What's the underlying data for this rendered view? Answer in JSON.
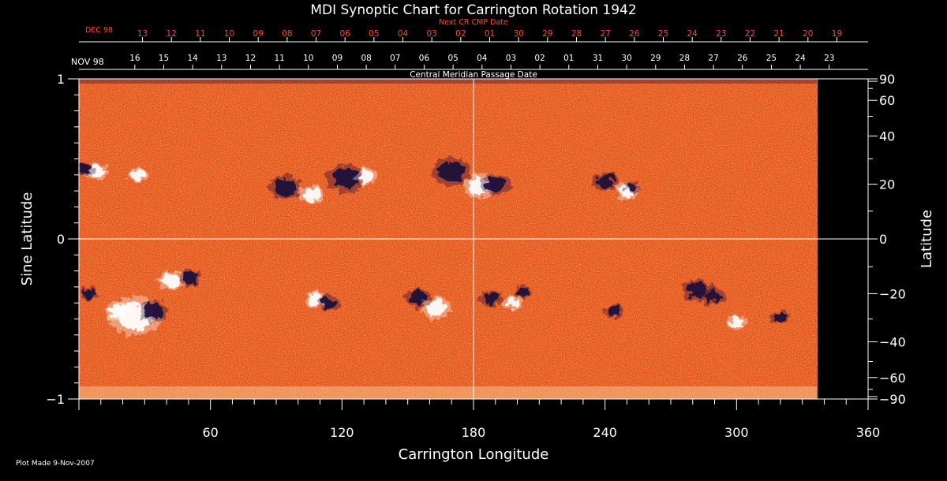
{
  "chart_data": {
    "type": "heatmap",
    "title": "MDI Synoptic Chart for Carrington Rotation 1942",
    "xlabel": "Carrington Longitude",
    "ylabel_left": "Sine Latitude",
    "ylabel_right": "Latitude",
    "xlim": [
      0,
      360
    ],
    "ylim": [
      -1,
      1
    ],
    "x_ticks": [
      60,
      120,
      180,
      240,
      300,
      360
    ],
    "y_ticks_left": [
      -1,
      0,
      1
    ],
    "y_ticks_right": [
      90,
      60,
      40,
      20,
      0,
      -20,
      -40,
      -60,
      -90
    ],
    "y_ticks_right_labels": [
      "90",
      "60",
      "40",
      "20",
      "0",
      "−20",
      "−40",
      "−60",
      "−90"
    ],
    "center_marker_longitude": 180,
    "data_extent_longitude": 337,
    "cmp_axis": {
      "label": "Central Meridian Passage Date",
      "month_labels": [
        "NOV 98"
      ],
      "dates": [
        "16",
        "15",
        "14",
        "13",
        "12",
        "11",
        "10",
        "09",
        "08",
        "07",
        "06",
        "05",
        "04",
        "03",
        "02",
        "01",
        "31",
        "30",
        "29",
        "28",
        "27",
        "26",
        "25",
        "24",
        "23"
      ]
    },
    "next_cr_axis": {
      "label": "Next CR CMP Date",
      "month_labels": [
        "DEC 98"
      ],
      "dates": [
        "13",
        "12",
        "11",
        "10",
        "09",
        "08",
        "07",
        "06",
        "05",
        "04",
        "03",
        "02",
        "01",
        "30",
        "29",
        "28",
        "27",
        "26",
        "25",
        "24",
        "23",
        "22",
        "21",
        "20",
        "19"
      ]
    },
    "active_regions": [
      {
        "lon": 94,
        "sinlat": 0.32,
        "polarity": "negative",
        "size": 1.0
      },
      {
        "lon": 106,
        "sinlat": 0.28,
        "polarity": "positive",
        "size": 0.8
      },
      {
        "lon": 122,
        "sinlat": 0.38,
        "polarity": "negative",
        "size": 1.2
      },
      {
        "lon": 131,
        "sinlat": 0.39,
        "polarity": "positive",
        "size": 0.7
      },
      {
        "lon": 170,
        "sinlat": 0.42,
        "polarity": "negative",
        "size": 1.2
      },
      {
        "lon": 183,
        "sinlat": 0.33,
        "polarity": "positive",
        "size": 1.0
      },
      {
        "lon": 190,
        "sinlat": 0.34,
        "polarity": "negative",
        "size": 0.9
      },
      {
        "lon": 240,
        "sinlat": 0.36,
        "polarity": "negative",
        "size": 0.8
      },
      {
        "lon": 250,
        "sinlat": 0.3,
        "polarity": "positive",
        "size": 0.7
      },
      {
        "lon": 252,
        "sinlat": 0.32,
        "polarity": "negative",
        "size": 0.5
      },
      {
        "lon": 8,
        "sinlat": 0.42,
        "polarity": "positive",
        "size": 0.7
      },
      {
        "lon": 3,
        "sinlat": 0.44,
        "polarity": "negative",
        "size": 0.5
      },
      {
        "lon": 27,
        "sinlat": 0.4,
        "polarity": "positive",
        "size": 0.6
      },
      {
        "lon": 42,
        "sinlat": -0.26,
        "polarity": "positive",
        "size": 0.8
      },
      {
        "lon": 51,
        "sinlat": -0.24,
        "polarity": "negative",
        "size": 0.7
      },
      {
        "lon": 26,
        "sinlat": -0.48,
        "polarity": "positive",
        "size": 1.6
      },
      {
        "lon": 34,
        "sinlat": -0.45,
        "polarity": "negative",
        "size": 0.9
      },
      {
        "lon": 18,
        "sinlat": -0.45,
        "polarity": "positive",
        "size": 0.8
      },
      {
        "lon": 108,
        "sinlat": -0.38,
        "polarity": "positive",
        "size": 0.7
      },
      {
        "lon": 114,
        "sinlat": -0.4,
        "polarity": "negative",
        "size": 0.7
      },
      {
        "lon": 155,
        "sinlat": -0.37,
        "polarity": "negative",
        "size": 0.8
      },
      {
        "lon": 163,
        "sinlat": -0.43,
        "polarity": "positive",
        "size": 0.9
      },
      {
        "lon": 188,
        "sinlat": -0.37,
        "polarity": "negative",
        "size": 0.7
      },
      {
        "lon": 198,
        "sinlat": -0.4,
        "polarity": "positive",
        "size": 0.6
      },
      {
        "lon": 203,
        "sinlat": -0.33,
        "polarity": "negative",
        "size": 0.5
      },
      {
        "lon": 244,
        "sinlat": -0.45,
        "polarity": "negative",
        "size": 0.6
      },
      {
        "lon": 282,
        "sinlat": -0.32,
        "polarity": "negative",
        "size": 0.9
      },
      {
        "lon": 290,
        "sinlat": -0.36,
        "polarity": "negative",
        "size": 0.7
      },
      {
        "lon": 300,
        "sinlat": -0.52,
        "polarity": "positive",
        "size": 0.6
      },
      {
        "lon": 320,
        "sinlat": -0.49,
        "polarity": "negative",
        "size": 0.6
      },
      {
        "lon": 5,
        "sinlat": -0.34,
        "polarity": "negative",
        "size": 0.5
      }
    ],
    "colors": {
      "background": "#000000",
      "field_base": "#e8480a",
      "positive_polarity": "#ffffff",
      "negative_polarity": "#1a0a3a",
      "frame": "#ffffff",
      "next_cr_text": "#ff4a2a"
    }
  },
  "footer": {
    "plot_made": "Plot Made  9-Nov-2007"
  }
}
